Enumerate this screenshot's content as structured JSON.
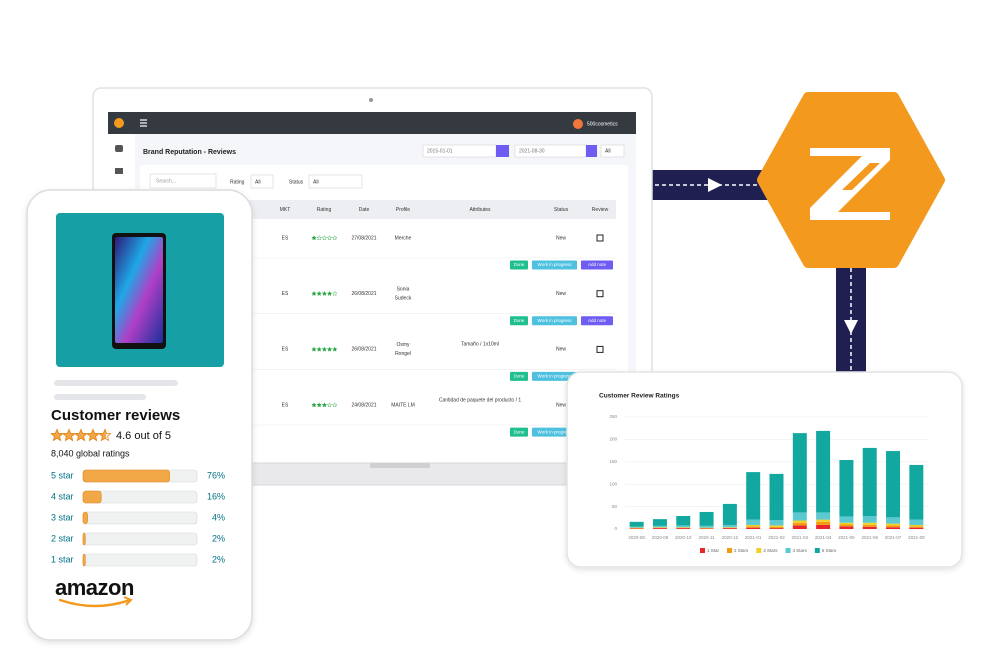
{
  "dashboard": {
    "account": "500cosmetics",
    "title": "Brand Reputation - Reviews",
    "date_from": "2015-01-01",
    "date_to": "2021-08-30",
    "filter": "All",
    "search_placeholder": "Search...",
    "rating_label": "Rating",
    "rating_value": "All",
    "status_label": "Status",
    "status_value": "All",
    "headers": [
      "MKT",
      "Rating",
      "Date",
      "Profile",
      "Attributes",
      "Status",
      "Review"
    ],
    "buttons": [
      "Done",
      "Work in progress",
      "Add note"
    ],
    "rows": [
      {
        "mkt": "ES",
        "rating": 1,
        "date": "27/08/2021",
        "profile": [
          "Merche"
        ],
        "status": "New"
      },
      {
        "mkt": "ES",
        "rating": 4,
        "date": "26/08/2021",
        "profile": [
          "Sonia",
          "Sudeck"
        ],
        "status": "New"
      },
      {
        "mkt": "ES",
        "rating": 5,
        "date": "26/08/2021",
        "profile": [
          "Osmy",
          "Rongel"
        ],
        "attributes": "Tamaño / 1x10ml",
        "status": "New"
      },
      {
        "mkt": "ES",
        "rating": 3,
        "date": "24/08/2021",
        "profile": [
          "MAITE LM"
        ],
        "attributes": "Cantidad de paquete del producto / 1",
        "status": "New"
      }
    ]
  },
  "phone": {
    "heading": "Customer reviews",
    "average": 4.6,
    "average_label": "4.6 out of 5",
    "total": "8,040 global ratings",
    "breakdown": {
      "labels": [
        "5 star",
        "4 star",
        "3 star",
        "2 star",
        "1 star"
      ],
      "values": [
        76,
        16,
        4,
        2,
        2
      ],
      "value_labels": [
        "76%",
        "16%",
        "4%",
        "2%",
        "2%"
      ]
    },
    "brand": "amazon"
  },
  "chart_data": {
    "type": "bar",
    "stacked": true,
    "title": "Customer Review Ratings",
    "categories": [
      "2020-08",
      "2020-09",
      "2020-10",
      "2020-11",
      "2020-12",
      "2021-01",
      "2021-02",
      "2021-03",
      "2021-04",
      "2021-05",
      "2021-06",
      "2021-07",
      "2021-08"
    ],
    "series": [
      {
        "name": "1 Star",
        "color": "#e8262b",
        "values": [
          1,
          2,
          2,
          1,
          2,
          3,
          2,
          8,
          9,
          6,
          5,
          4,
          3
        ]
      },
      {
        "name": "2 Stars",
        "color": "#f39c12",
        "values": [
          1,
          1,
          1,
          1,
          1,
          3,
          3,
          6,
          7,
          4,
          4,
          4,
          3
        ]
      },
      {
        "name": "3 Stars",
        "color": "#f1d02b",
        "values": [
          1,
          1,
          1,
          1,
          1,
          3,
          3,
          5,
          5,
          4,
          5,
          4,
          3
        ]
      },
      {
        "name": "4 Stars",
        "color": "#5cc8cf",
        "values": [
          2,
          3,
          4,
          4,
          5,
          12,
          12,
          18,
          16,
          14,
          15,
          14,
          12
        ]
      },
      {
        "name": "5 Stars",
        "color": "#12a89f",
        "values": [
          11,
          15,
          21,
          31,
          47,
          106,
          103,
          177,
          182,
          126,
          152,
          148,
          122
        ]
      }
    ],
    "ylim": [
      0,
      250
    ],
    "yticks": [
      0,
      50,
      100,
      150,
      200,
      250
    ],
    "grid": true,
    "legend": "bottom"
  }
}
